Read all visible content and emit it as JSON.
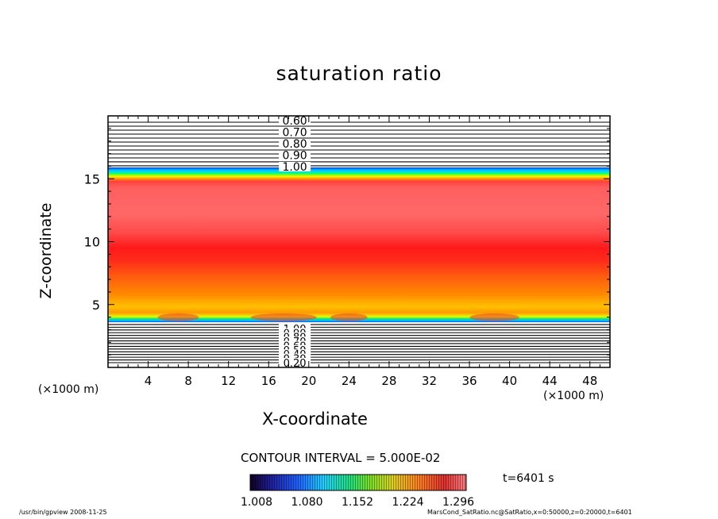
{
  "chart_data": {
    "type": "contour",
    "title": "saturation ratio",
    "xlabel": "X-coordinate",
    "ylabel": "Z-coordinate",
    "x_unit_left": "(×1000 m)",
    "x_unit_right": "(×1000 m)",
    "xlim": [
      0,
      50
    ],
    "ylim": [
      0,
      20
    ],
    "x_ticks": [
      4,
      8,
      12,
      16,
      20,
      24,
      28,
      32,
      36,
      40,
      44,
      48
    ],
    "y_ticks": [
      5,
      10,
      15
    ],
    "upper_contour_labels": [
      "0.60",
      "0.70",
      "0.80",
      "0.90",
      "1.00"
    ],
    "lower_contour_labels": [
      "1.00",
      "0.90",
      "0.80",
      "0.70",
      "0.60",
      "0.50",
      "0.40",
      "0.30",
      "0.20"
    ],
    "filled_layer_z": [
      3.6,
      15.9
    ],
    "contour_interval_label": "CONTOUR INTERVAL = 5.000E-02",
    "colorbar": {
      "tick_labels": [
        "1.008",
        "1.080",
        "1.152",
        "1.224",
        "1.296"
      ],
      "range": [
        1.008,
        1.296
      ]
    },
    "time_label": "t=6401 s",
    "footer_left": "/usr/bin/gpview  2008-11-25",
    "footer_right": "MarsCond_SatRatio.nc@SatRatio,x=0:50000,z=0:20000,t=6401"
  },
  "colors": {
    "background": "#ffffff",
    "axes": "#000000",
    "peak": "#ff2020",
    "saturated_core": "#ff5a5a",
    "edge_orange": "#ff8c00",
    "edge_yellow": "#e8e800",
    "edge_green": "#00cc44",
    "edge_cyan": "#00c8ff",
    "edge_blue": "#0050ff"
  }
}
